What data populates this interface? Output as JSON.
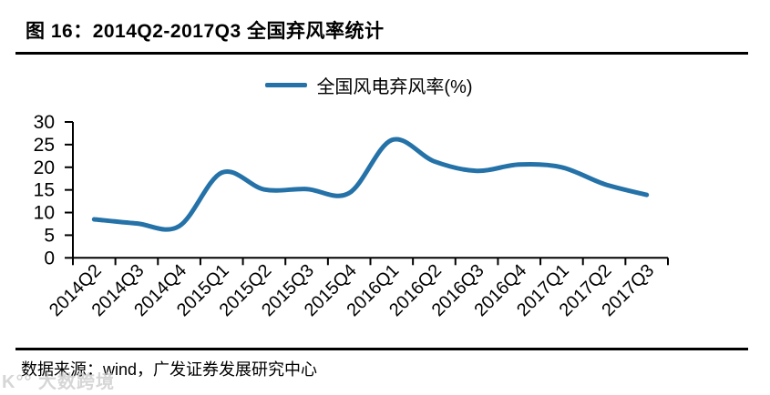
{
  "figure": {
    "title": "图 16：2014Q2-2017Q3 全国弃风率统计",
    "source": "数据来源：wind，广发证券发展研究中心",
    "watermark": "K°° 大数跨境"
  },
  "chart_data": {
    "type": "line",
    "title": "2014Q2-2017Q3 全国弃风率统计",
    "categories": [
      "2014Q2",
      "2014Q3",
      "2014Q4",
      "2015Q1",
      "2015Q2",
      "2015Q3",
      "2015Q4",
      "2016Q1",
      "2016Q2",
      "2016Q3",
      "2016Q4",
      "2017Q1",
      "2017Q2",
      "2017Q3"
    ],
    "series": [
      {
        "name": "全国风电弃风率(%)",
        "values": [
          8.5,
          7.6,
          7.0,
          18.8,
          15.1,
          15.2,
          14.3,
          26.0,
          21.3,
          19.2,
          20.6,
          20.0,
          16.3,
          13.9
        ]
      }
    ],
    "ylim": [
      0,
      30
    ],
    "yticks": [
      0,
      5,
      10,
      15,
      20,
      25,
      30
    ],
    "grid": false,
    "legend_position": "top-center",
    "line_color": "#2472a8",
    "axis_color": "#000000",
    "smooth": true
  }
}
